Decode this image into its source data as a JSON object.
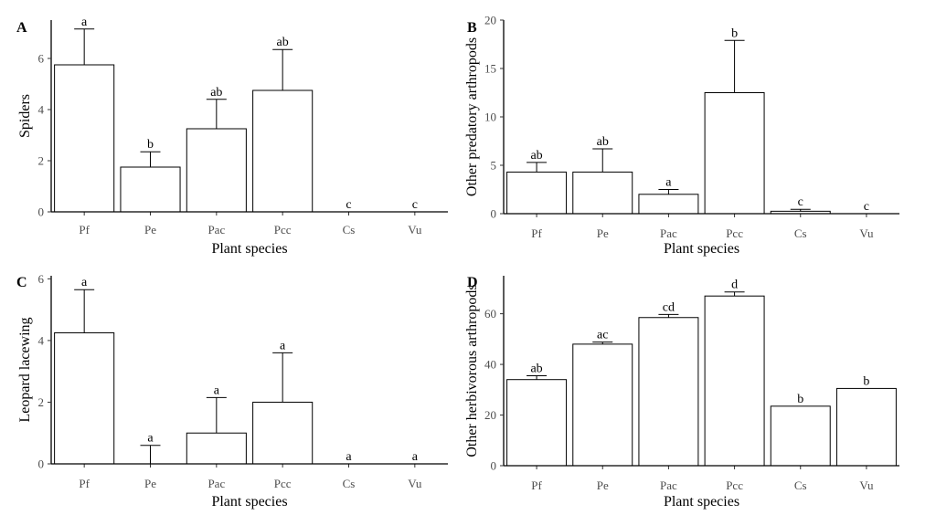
{
  "chart_data": [
    {
      "type": "bar",
      "panel": "A",
      "ylabel": "Spiders",
      "xlabel": "Plant species",
      "categories": [
        "Pf",
        "Pe",
        "Pac",
        "Pcc",
        "Cs",
        "Vu"
      ],
      "values": [
        5.75,
        1.75,
        3.25,
        4.75,
        0,
        0
      ],
      "errors": [
        1.4,
        0.6,
        1.15,
        1.6,
        0,
        0
      ],
      "letters": [
        "a",
        "b",
        "ab",
        "ab",
        "c",
        "c"
      ],
      "ylim": [
        0,
        7.5
      ],
      "yticks": [
        0,
        2,
        4,
        6
      ]
    },
    {
      "type": "bar",
      "panel": "B",
      "ylabel": "Other predatory arthropods",
      "xlabel": "Plant species",
      "categories": [
        "Pf",
        "Pe",
        "Pac",
        "Pcc",
        "Cs",
        "Vu"
      ],
      "values": [
        4.3,
        4.3,
        2.0,
        12.5,
        0.25,
        0
      ],
      "errors": [
        1.0,
        2.4,
        0.5,
        5.4,
        0.2,
        0
      ],
      "letters": [
        "ab",
        "ab",
        "a",
        "b",
        "c",
        "c"
      ],
      "ylim": [
        0,
        20
      ],
      "yticks": [
        0,
        5,
        10,
        15,
        20
      ]
    },
    {
      "type": "bar",
      "panel": "C",
      "ylabel": "Leopard lacewing",
      "xlabel": "Plant species",
      "categories": [
        "Pf",
        "Pe",
        "Pac",
        "Pcc",
        "Cs",
        "Vu"
      ],
      "values": [
        4.25,
        0,
        1.0,
        2.0,
        0,
        0
      ],
      "errors": [
        1.4,
        0.6,
        1.15,
        1.6,
        0,
        0
      ],
      "letters": [
        "a",
        "a",
        "a",
        "a",
        "a",
        "a"
      ],
      "ylim": [
        0,
        6.1
      ],
      "yticks": [
        0,
        2,
        4,
        6
      ]
    },
    {
      "type": "bar",
      "panel": "D",
      "ylabel": "Other herbivorous arthropods",
      "xlabel": "Plant species",
      "categories": [
        "Pf",
        "Pe",
        "Pac",
        "Pcc",
        "Cs",
        "Vu"
      ],
      "values": [
        34,
        48,
        58.5,
        67,
        23.5,
        30.5
      ],
      "errors": [
        1.5,
        0.8,
        1.2,
        1.6,
        0,
        0
      ],
      "letters": [
        "ab",
        "ac",
        "cd",
        "d",
        "b",
        "b"
      ],
      "ylim": [
        0,
        75
      ],
      "yticks": [
        0,
        20,
        40,
        60
      ]
    }
  ]
}
